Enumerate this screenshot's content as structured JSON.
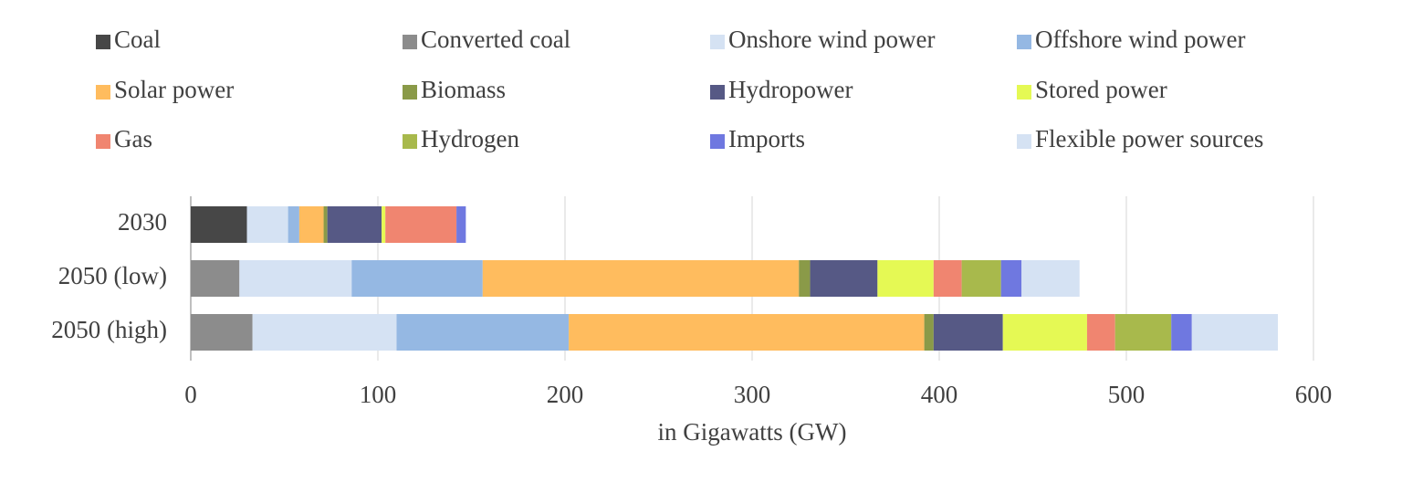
{
  "chart_data": {
    "type": "stacked-bar-horizontal",
    "categories": [
      "2030",
      "2050 (low)",
      "2050 (high)"
    ],
    "x_label": "in Gigawatts (GW)",
    "xlim": [
      0,
      600
    ],
    "xticks": [
      0,
      100,
      200,
      300,
      400,
      500,
      600
    ],
    "grid": true,
    "series": [
      {
        "name": "Coal",
        "color": "#474747",
        "values": [
          30,
          0,
          0
        ]
      },
      {
        "name": "Converted coal",
        "color": "#8c8c8c",
        "values": [
          0,
          26,
          33
        ]
      },
      {
        "name": "Onshore wind power",
        "color": "#d5e2f3",
        "values": [
          22,
          60,
          77
        ]
      },
      {
        "name": "Offshore wind power",
        "color": "#95b8e3",
        "values": [
          6,
          70,
          92
        ]
      },
      {
        "name": "Solar power",
        "color": "#ffbc5e",
        "values": [
          13,
          169,
          190
        ]
      },
      {
        "name": "Biomass",
        "color": "#8a9a48",
        "values": [
          2,
          6,
          5
        ]
      },
      {
        "name": "Hydropower",
        "color": "#565985",
        "values": [
          29,
          36,
          37
        ]
      },
      {
        "name": "Stored power",
        "color": "#e5f954",
        "values": [
          2,
          30,
          45
        ]
      },
      {
        "name": "Gas",
        "color": "#f08570",
        "values": [
          38,
          15,
          15
        ]
      },
      {
        "name": "Hydrogen",
        "color": "#a8b94c",
        "values": [
          0,
          21,
          30
        ]
      },
      {
        "name": "Imports",
        "color": "#6f78e0",
        "values": [
          5,
          11,
          11
        ]
      },
      {
        "name": "Flexible power sources",
        "color": "#d5e2f3",
        "values": [
          0,
          31,
          46
        ]
      }
    ]
  }
}
